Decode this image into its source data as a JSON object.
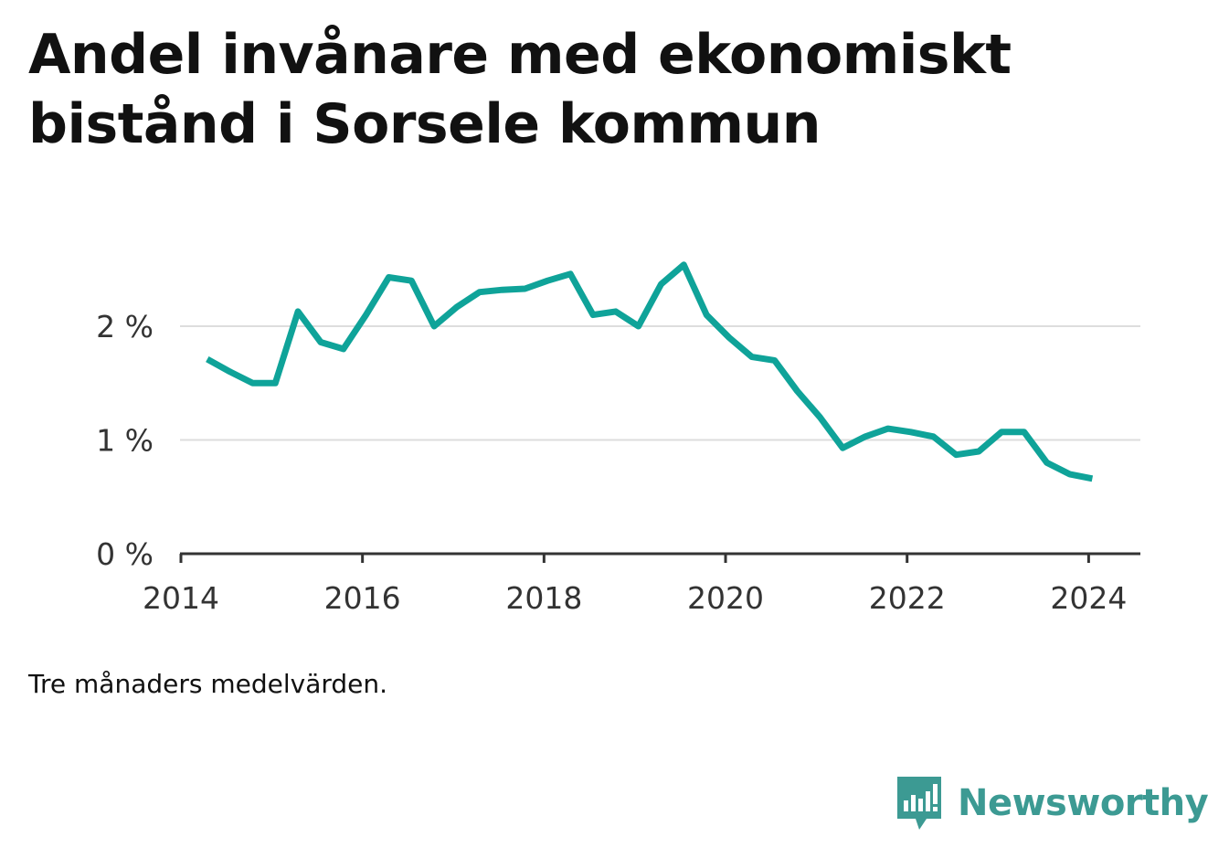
{
  "title": "Andel invånare med ekonomiskt bistånd i Sorsele kommun",
  "note": "Tre månaders medelvärden.",
  "brand": {
    "name": "Newsworthy",
    "icon": "newsworthy-chat-bars-icon",
    "color": "#3c9a93"
  },
  "colors": {
    "line": "#0fa399",
    "grid": "#dddddd",
    "axis": "#333333"
  },
  "chart_data": {
    "type": "line",
    "title": "Andel invånare med ekonomiskt bistånd i Sorsele kommun",
    "xlabel": "",
    "ylabel": "",
    "x_ticks": [
      "2014",
      "2016",
      "2018",
      "2020",
      "2022",
      "2024"
    ],
    "y_ticks": [
      "0 %",
      "1 %",
      "2 %"
    ],
    "xlim": [
      2013.99,
      2024.57
    ],
    "ylim": [
      0,
      2.9
    ],
    "grid": true,
    "legend": "none",
    "series": [
      {
        "x": [
          2014.29,
          2014.54,
          2014.79,
          2015.04,
          2015.29,
          2015.54,
          2015.79,
          2016.04,
          2016.29,
          2016.54,
          2016.79,
          2017.04,
          2017.29,
          2017.54,
          2017.79,
          2018.04,
          2018.29,
          2018.54,
          2018.79,
          2019.04,
          2019.29,
          2019.54,
          2019.79,
          2020.04,
          2020.29,
          2020.54,
          2020.79,
          2021.04,
          2021.29,
          2021.54,
          2021.79,
          2022.04,
          2022.29,
          2022.54,
          2022.79,
          2023.04,
          2023.29,
          2023.54,
          2023.79,
          2024.04
        ],
        "y": [
          1.71,
          1.6,
          1.5,
          1.5,
          2.13,
          1.86,
          1.8,
          2.1,
          2.43,
          2.4,
          2.0,
          2.17,
          2.3,
          2.32,
          2.33,
          2.4,
          2.46,
          2.1,
          2.13,
          2.0,
          2.37,
          2.54,
          2.1,
          1.9,
          1.73,
          1.7,
          1.43,
          1.2,
          0.93,
          1.03,
          1.1,
          1.07,
          1.03,
          0.87,
          0.9,
          1.07,
          1.07,
          0.8,
          0.7,
          0.66
        ]
      }
    ]
  }
}
